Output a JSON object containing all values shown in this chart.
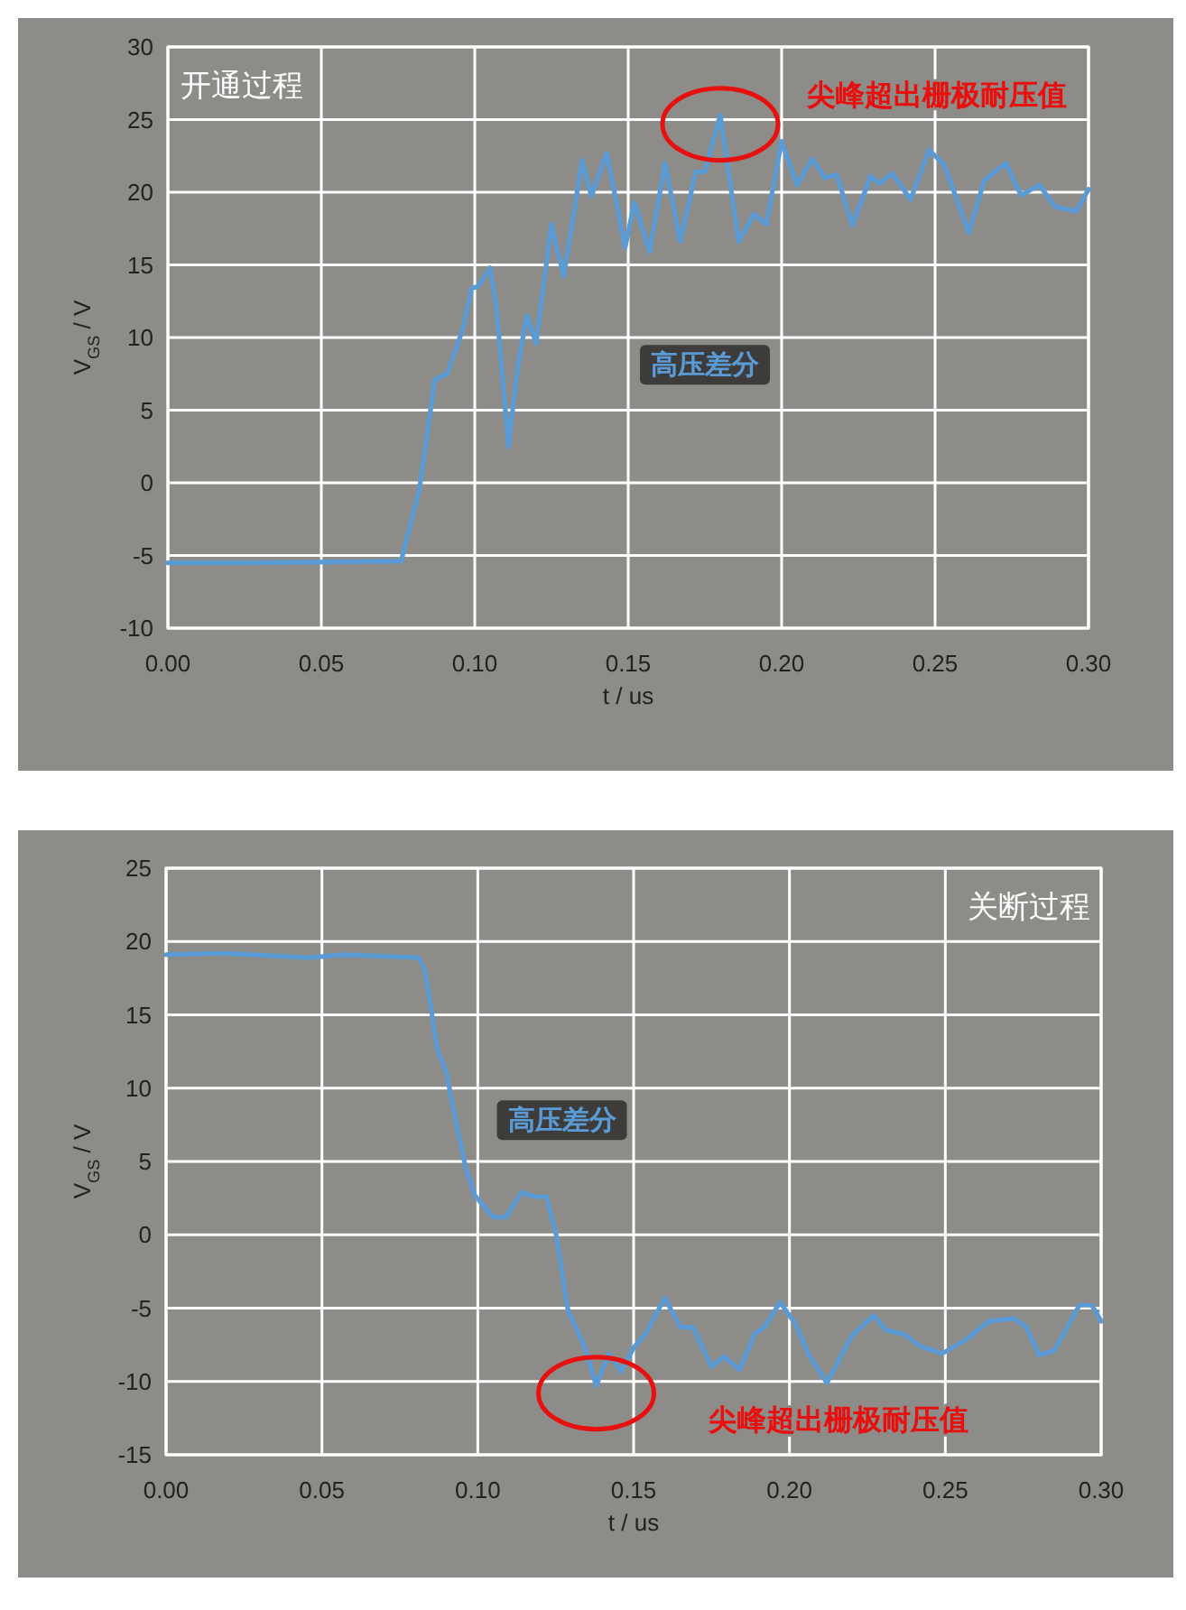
{
  "chart_data": [
    {
      "type": "line",
      "title": "开通过程",
      "xlabel": "t / us",
      "ylabel": "V$_{GS}$ / V",
      "grid": true,
      "xlim": [
        0,
        0.3
      ],
      "ylim": [
        -10,
        30
      ],
      "xticks": [
        {
          "value": 0,
          "label": "0.00"
        },
        {
          "value": 0.05,
          "label": "0.05"
        },
        {
          "value": 0.1,
          "label": "0.10"
        },
        {
          "value": 0.15,
          "label": "0.15"
        },
        {
          "value": 0.2,
          "label": "0.20"
        },
        {
          "value": 0.25,
          "label": "0.25"
        },
        {
          "value": 0.3,
          "label": "0.30"
        }
      ],
      "yticks": [
        -10,
        -5,
        0,
        5,
        10,
        15,
        20,
        25,
        30
      ],
      "annotations": [
        "尖峰超出栅极耐压值"
      ],
      "series": [
        {
          "name": "高压差分",
          "color": "#5b9bd5",
          "x": [
            0,
            0.028,
            0.076,
            0.082,
            0.087,
            0.091,
            0.096,
            0.099,
            0.101,
            0.105,
            0.107,
            0.111,
            0.114,
            0.117,
            0.12,
            0.125,
            0.129,
            0.135,
            0.138,
            0.143,
            0.149,
            0.152,
            0.157,
            0.162,
            0.167,
            0.172,
            0.175,
            0.18,
            0.186,
            0.191,
            0.195,
            0.2,
            0.205,
            0.21,
            0.214,
            0.218,
            0.223,
            0.229,
            0.232,
            0.236,
            0.242,
            0.248,
            0.253,
            0.261,
            0.266,
            0.273,
            0.278,
            0.284,
            0.289,
            0.296,
            0.3
          ],
          "values": [
            -5.5,
            -5.5,
            -5.4,
            -0.4,
            7.1,
            7.5,
            10.5,
            13.4,
            13.5,
            14.8,
            12.2,
            2.5,
            8.0,
            11.5,
            9.6,
            17.8,
            14.2,
            22.2,
            19.7,
            22.7,
            16.2,
            19.3,
            15.9,
            22.0,
            16.6,
            21.4,
            21.4,
            25.3,
            16.6,
            18.5,
            17.8,
            23.5,
            20.5,
            22.3,
            21.0,
            21.2,
            17.7,
            21.1,
            20.6,
            21.3,
            19.5,
            22.9,
            21.9,
            17.2,
            20.8,
            22.0,
            19.8,
            20.5,
            19.0,
            18.7,
            20.2
          ]
        }
      ]
    },
    {
      "type": "line",
      "title": "关断过程",
      "xlabel": "t / us",
      "ylabel": "V$_{GS}$ / V",
      "grid": true,
      "xlim": [
        0,
        0.3
      ],
      "ylim": [
        -15,
        25
      ],
      "xticks": [
        {
          "value": 0,
          "label": "0.00"
        },
        {
          "value": 0.05,
          "label": "0.05"
        },
        {
          "value": 0.1,
          "label": "0.10"
        },
        {
          "value": 0.15,
          "label": "0.15"
        },
        {
          "value": 0.2,
          "label": "0.20"
        },
        {
          "value": 0.25,
          "label": "0.25"
        },
        {
          "value": 0.3,
          "label": "0.30"
        }
      ],
      "yticks": [
        -15,
        -10,
        -5,
        0,
        5,
        10,
        15,
        20,
        25
      ],
      "annotations": [
        "尖峰超出栅极耐压值"
      ],
      "series": [
        {
          "name": "高压差分",
          "color": "#5b9bd5",
          "x": [
            0,
            0.018,
            0.046,
            0.057,
            0.081,
            0.083,
            0.087,
            0.09,
            0.093,
            0.096,
            0.099,
            0.105,
            0.109,
            0.114,
            0.118,
            0.122,
            0.125,
            0.129,
            0.134,
            0.138,
            0.142,
            0.146,
            0.15,
            0.154,
            0.16,
            0.165,
            0.169,
            0.175,
            0.179,
            0.184,
            0.189,
            0.192,
            0.197,
            0.202,
            0.206,
            0.212,
            0.22,
            0.227,
            0.231,
            0.237,
            0.242,
            0.249,
            0.257,
            0.264,
            0.272,
            0.276,
            0.28,
            0.285,
            0.293,
            0.297,
            0.3
          ],
          "values": [
            19.1,
            19.2,
            18.9,
            19.1,
            18.9,
            18.1,
            12.7,
            11.0,
            7.7,
            4.7,
            2.7,
            1.2,
            1.2,
            2.9,
            2.6,
            2.6,
            0.2,
            -5.2,
            -7.5,
            -10.3,
            -8.1,
            -9.3,
            -7.7,
            -6.7,
            -4.3,
            -6.3,
            -6.3,
            -9.0,
            -8.3,
            -9.2,
            -6.7,
            -6.3,
            -4.6,
            -6.1,
            -8.1,
            -10.1,
            -6.9,
            -5.5,
            -6.5,
            -6.8,
            -7.6,
            -8.1,
            -7.1,
            -5.9,
            -5.7,
            -6.3,
            -8.2,
            -7.9,
            -4.8,
            -4.8,
            -5.9
          ]
        }
      ]
    }
  ]
}
